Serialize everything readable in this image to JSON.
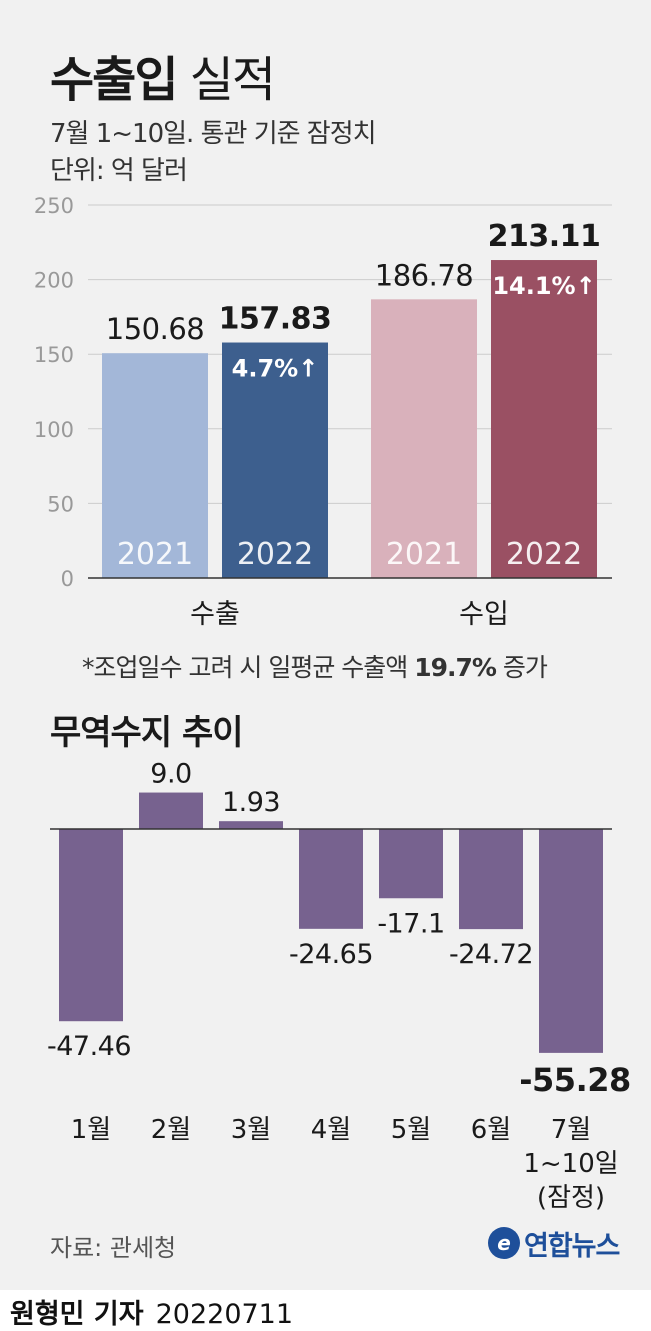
{
  "title_bold": "수출입",
  "title_light": "실적",
  "subtitle": "7월 1~10일. 통관 기준 잠정치",
  "unit": "단위: 억 달러",
  "note_prefix": "*조업일수 고려 시 일평균 수출액 ",
  "note_value": "19.7%",
  "note_suffix": " 증가",
  "section2_title": "무역수지 추이",
  "source": "자료: 관세청",
  "logo_text": "연합뉴스",
  "logo_mark": "e",
  "byline_name": "원형민 기자",
  "byline_date": "20220711",
  "colors": {
    "export_2021": "#a3b7d8",
    "export_2022": "#3d5f8e",
    "import_2021": "#d9b1bb",
    "import_2022": "#9a5063",
    "balance": "#77628f",
    "axis": "#999999"
  },
  "chart_data": [
    {
      "type": "bar",
      "title": "",
      "ylim": [
        0,
        250
      ],
      "yticks": [
        0,
        50,
        100,
        150,
        200,
        250
      ],
      "grid": true,
      "categories": [
        "수출",
        "수입"
      ],
      "bars": [
        {
          "category": "수출",
          "year": "2021",
          "value": 150.68,
          "label": "150.68",
          "color_key": "export_2021",
          "highlight": false,
          "change": ""
        },
        {
          "category": "수출",
          "year": "2022",
          "value": 157.83,
          "label": "157.83",
          "color_key": "export_2022",
          "highlight": true,
          "change": "4.7%↑"
        },
        {
          "category": "수입",
          "year": "2021",
          "value": 186.78,
          "label": "186.78",
          "color_key": "import_2021",
          "highlight": false,
          "change": ""
        },
        {
          "category": "수입",
          "year": "2022",
          "value": 213.11,
          "label": "213.11",
          "color_key": "import_2022",
          "highlight": true,
          "change": "14.1%↑"
        }
      ]
    },
    {
      "type": "bar",
      "title": "무역수지 추이",
      "ylim": [
        -60,
        12
      ],
      "categories": [
        "1월",
        "2월",
        "3월",
        "4월",
        "5월",
        "6월",
        "7월\n1~10일\n(잠정)"
      ],
      "values": [
        -47.46,
        9.0,
        1.93,
        -24.65,
        -17.1,
        -24.72,
        -55.28
      ],
      "labels": [
        "-47.46",
        "9.0",
        "1.93",
        "-24.65",
        "-17.1",
        "-24.72",
        "-55.28"
      ],
      "highlight_index": 6
    }
  ]
}
